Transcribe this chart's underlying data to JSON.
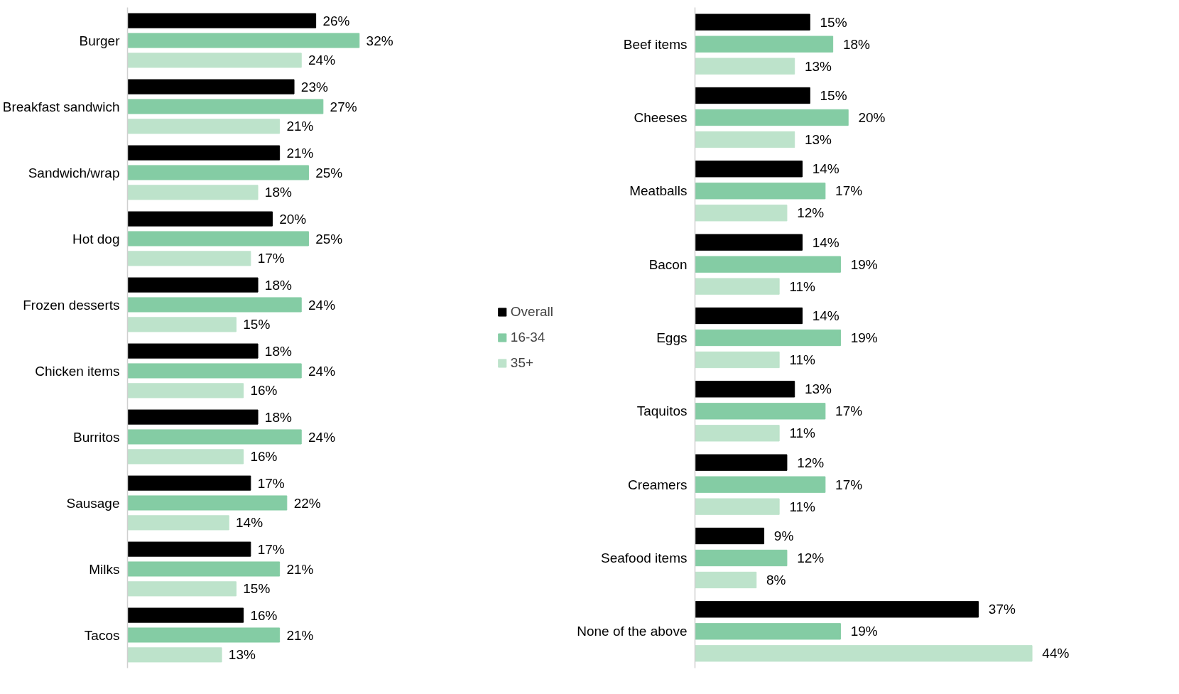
{
  "chart_data": [
    {
      "type": "bar",
      "orientation": "horizontal",
      "legend": "right",
      "grid": false,
      "tick_labels": "y",
      "categories": [
        "Burger",
        "Breakfast sandwich",
        "Sandwich/wrap",
        "Hot dog",
        "Frozen desserts",
        "Chicken items",
        "Burritos",
        "Sausage",
        "Milks",
        "Tacos"
      ],
      "series": [
        {
          "name": "Overall",
          "color": "#000000",
          "values": [
            26,
            23,
            21,
            20,
            18,
            18,
            18,
            17,
            17,
            16
          ],
          "value_labels": [
            "26%",
            "23%",
            "21%",
            "20%",
            "18%",
            "18%",
            "18%",
            "17%",
            "17%",
            "16%"
          ]
        },
        {
          "name": "16-34",
          "color": "#84cca4",
          "values": [
            32,
            27,
            25,
            25,
            24,
            24,
            24,
            22,
            21,
            21
          ],
          "value_labels": [
            "32%",
            "27%",
            "25%",
            "25%",
            "24%",
            "24%",
            "24%",
            "22%",
            "21%",
            "21%"
          ]
        },
        {
          "name": "35+",
          "color": "#bde3cb",
          "values": [
            24,
            21,
            18,
            17,
            15,
            16,
            16,
            14,
            15,
            13
          ],
          "value_labels": [
            "24%",
            "21%",
            "18%",
            "17%",
            "15%",
            "16%",
            "16%",
            "14%",
            "15%",
            "13%"
          ]
        }
      ]
    },
    {
      "type": "bar",
      "orientation": "horizontal",
      "legend": false,
      "grid": false,
      "tick_labels": "y",
      "categories": [
        "Beef items",
        "Cheeses",
        "Meatballs",
        "Bacon",
        "Eggs",
        "Taquitos",
        "Creamers",
        "Seafood items",
        "None of the above"
      ],
      "series": [
        {
          "color": "#000000",
          "values": [
            15,
            15,
            14,
            14,
            14,
            13,
            12,
            9,
            37
          ],
          "value_labels": [
            "15%",
            "15%",
            "14%",
            "14%",
            "14%",
            "13%",
            "12%",
            "9%",
            "37%"
          ]
        },
        {
          "color": "#84cca4",
          "values": [
            18,
            20,
            17,
            19,
            19,
            17,
            17,
            12,
            19
          ],
          "value_labels": [
            "18%",
            "20%",
            "17%",
            "19%",
            "19%",
            "17%",
            "17%",
            "12%",
            "19%"
          ]
        },
        {
          "color": "#bde3cb",
          "values": [
            13,
            13,
            12,
            11,
            11,
            11,
            11,
            8,
            44
          ],
          "value_labels": [
            "13%",
            "13%",
            "12%",
            "11%",
            "11%",
            "11%",
            "11%",
            "8%",
            "44%"
          ]
        }
      ]
    }
  ]
}
